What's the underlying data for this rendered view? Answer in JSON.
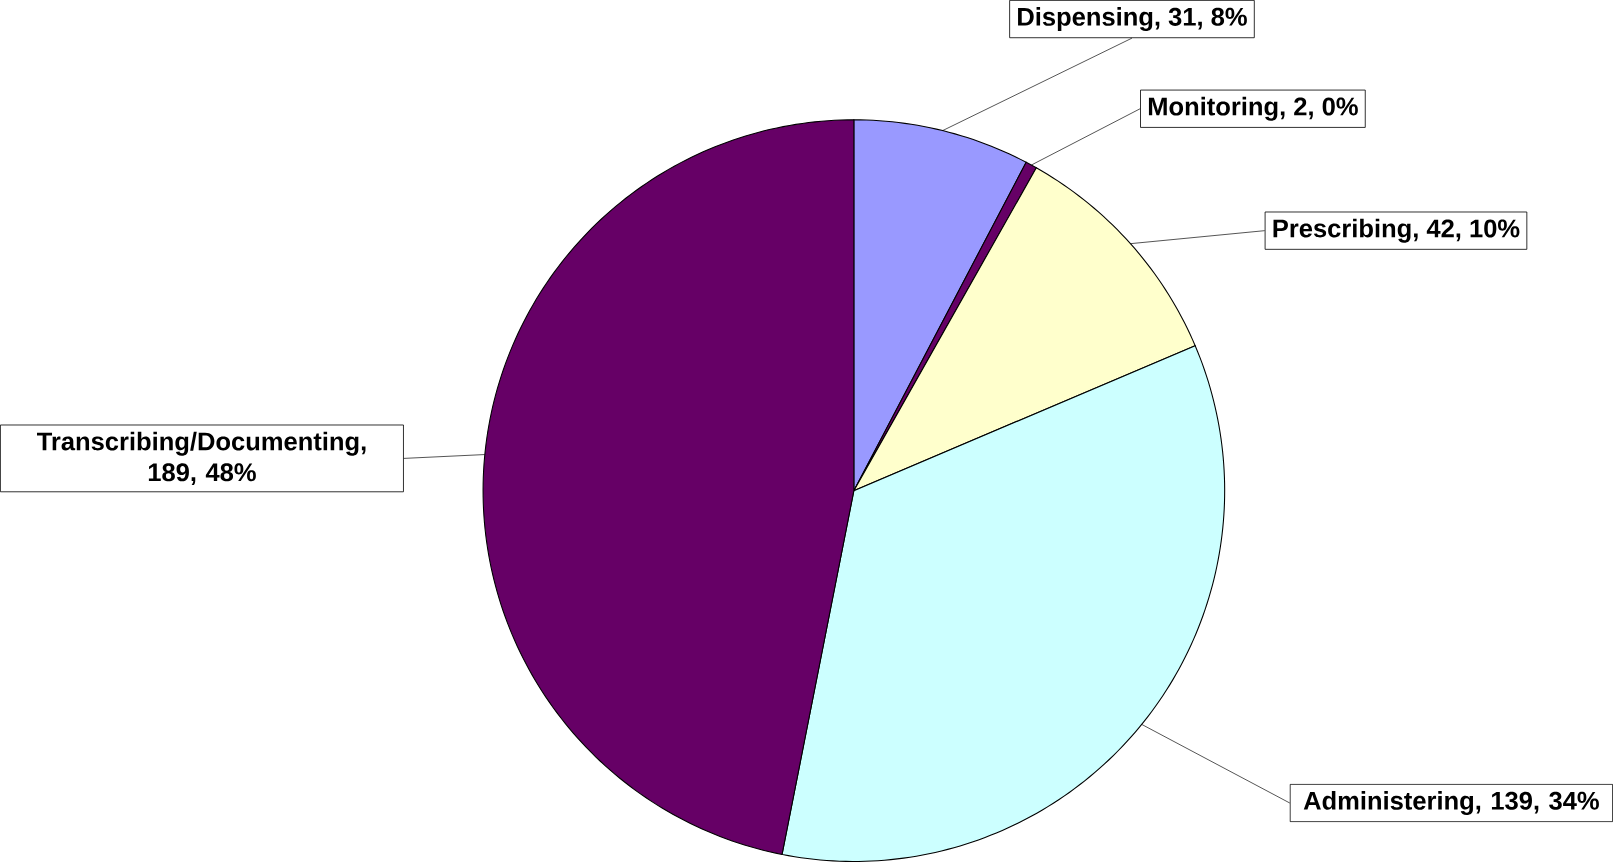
{
  "chart_data": {
    "type": "pie",
    "categories": [
      null,
      null,
      null,
      null,
      null
    ],
    "values": [
      31,
      2,
      42,
      139,
      189
    ],
    "value_labels": [
      "Dispensing, 31, 8%",
      "Monitoring, 2, 0%",
      "Prescribing, 42, 10%",
      "Administering, 139, 34%",
      "Transcribing/Documenting, 189, 48%"
    ],
    "colors": [
      "#9999ff",
      "#660066",
      "#ffffcc",
      "#ccffff",
      "#660066"
    ]
  }
}
